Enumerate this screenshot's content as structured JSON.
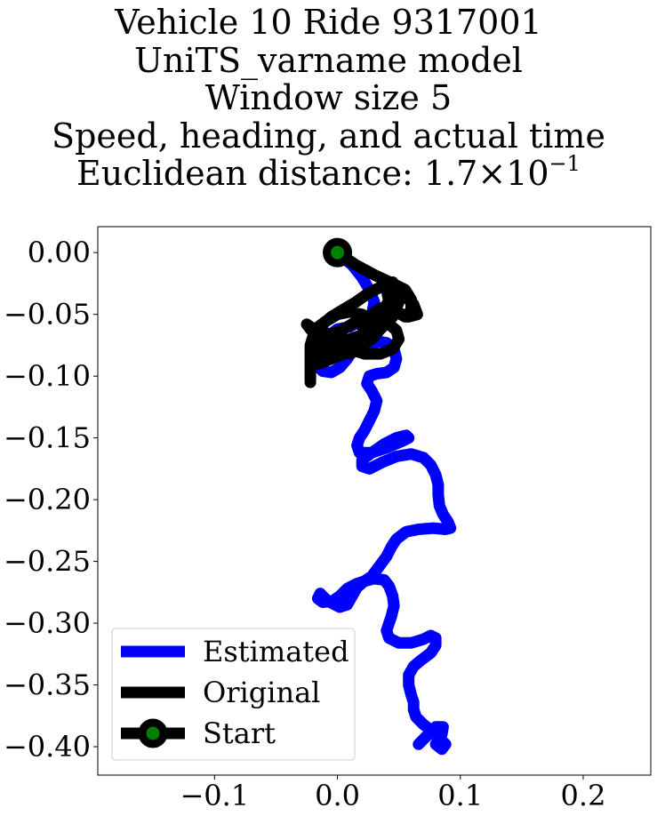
{
  "chart_data": {
    "type": "line",
    "title_lines": [
      "Vehicle 10 Ride 9317001",
      "UniTS_varname model",
      "Window size 5",
      "Speed, heading, and actual time"
    ],
    "distance_label": "Euclidean distance: 1.7",
    "distance_mult": "×",
    "distance_base": "10",
    "distance_exp": "−1",
    "xlim": [
      -0.195,
      0.255
    ],
    "ylim": [
      -0.423,
      0.021
    ],
    "x_ticks": [
      -0.1,
      0.0,
      0.1,
      0.2
    ],
    "x_tick_labels": [
      "−0.1",
      "0.0",
      "0.1",
      "0.2"
    ],
    "y_ticks": [
      0.0,
      -0.05,
      -0.1,
      -0.15,
      -0.2,
      -0.25,
      -0.3,
      -0.35,
      -0.4
    ],
    "y_tick_labels": [
      "0.00",
      "−0.05",
      "−0.10",
      "−0.15",
      "−0.20",
      "−0.25",
      "−0.30",
      "−0.35",
      "−0.40"
    ],
    "grid": false,
    "legend_position": "lower-left",
    "legend": [
      "Estimated",
      "Original",
      "Start"
    ],
    "colors": {
      "estimated": "#0000ff",
      "original": "#000000",
      "start_marker_fill": "#008000",
      "start_marker_edge": "#000000"
    },
    "series": [
      {
        "name": "Estimated",
        "x": [
          0.0,
          0.012,
          0.02,
          0.026,
          0.03,
          0.028,
          0.02,
          0.01,
          0.0,
          -0.008,
          -0.016,
          -0.02,
          -0.018,
          -0.012,
          -0.005,
          0.002,
          0.008,
          0.012,
          0.018,
          0.026,
          0.034,
          0.04,
          0.046,
          0.048,
          0.046,
          0.04,
          0.032,
          0.026,
          0.024,
          0.028,
          0.032,
          0.03,
          0.026,
          0.022,
          0.018,
          0.016,
          0.018,
          0.028,
          0.04,
          0.052,
          0.058,
          0.056,
          0.048,
          0.038,
          0.028,
          0.02,
          0.02,
          0.026,
          0.036,
          0.048,
          0.06,
          0.07,
          0.076,
          0.08,
          0.082,
          0.082,
          0.083,
          0.086,
          0.09,
          0.092,
          0.088,
          0.078,
          0.066,
          0.056,
          0.048,
          0.044,
          0.04,
          0.034,
          0.028,
          0.022,
          0.016,
          0.008,
          0.002,
          -0.004,
          -0.012,
          -0.016,
          -0.014,
          -0.008,
          0.002,
          0.008,
          0.012,
          0.016,
          0.022,
          0.03,
          0.038,
          0.042,
          0.045,
          0.046,
          0.044,
          0.042,
          0.04,
          0.042,
          0.05,
          0.06,
          0.07,
          0.076,
          0.08,
          0.08,
          0.076,
          0.068,
          0.062,
          0.058,
          0.058,
          0.06,
          0.062,
          0.062,
          0.064,
          0.07,
          0.078,
          0.084,
          0.088,
          0.085,
          0.08,
          0.085,
          0.086,
          0.08,
          0.074,
          0.066
        ],
        "y": [
          0.0,
          -0.01,
          -0.02,
          -0.03,
          -0.04,
          -0.05,
          -0.055,
          -0.06,
          -0.062,
          -0.068,
          -0.075,
          -0.082,
          -0.09,
          -0.096,
          -0.097,
          -0.093,
          -0.086,
          -0.08,
          -0.078,
          -0.075,
          -0.072,
          -0.073,
          -0.078,
          -0.086,
          -0.093,
          -0.097,
          -0.098,
          -0.1,
          -0.106,
          -0.112,
          -0.12,
          -0.128,
          -0.136,
          -0.144,
          -0.15,
          -0.156,
          -0.162,
          -0.162,
          -0.158,
          -0.153,
          -0.15,
          -0.148,
          -0.15,
          -0.155,
          -0.162,
          -0.168,
          -0.173,
          -0.175,
          -0.17,
          -0.165,
          -0.163,
          -0.166,
          -0.172,
          -0.18,
          -0.188,
          -0.196,
          -0.205,
          -0.212,
          -0.218,
          -0.223,
          -0.224,
          -0.223,
          -0.224,
          -0.226,
          -0.232,
          -0.238,
          -0.246,
          -0.254,
          -0.262,
          -0.266,
          -0.268,
          -0.272,
          -0.278,
          -0.282,
          -0.283,
          -0.28,
          -0.276,
          -0.282,
          -0.287,
          -0.285,
          -0.278,
          -0.271,
          -0.266,
          -0.264,
          -0.265,
          -0.27,
          -0.278,
          -0.286,
          -0.294,
          -0.3,
          -0.306,
          -0.312,
          -0.316,
          -0.316,
          -0.313,
          -0.31,
          -0.312,
          -0.318,
          -0.324,
          -0.33,
          -0.335,
          -0.342,
          -0.35,
          -0.358,
          -0.364,
          -0.37,
          -0.376,
          -0.382,
          -0.388,
          -0.394,
          -0.398,
          -0.402,
          -0.398,
          -0.39,
          -0.384,
          -0.384,
          -0.39,
          -0.398
        ]
      },
      {
        "name": "Original",
        "x": [
          0.0,
          0.015,
          0.03,
          0.045,
          0.055,
          0.06,
          0.06,
          0.055,
          0.048,
          0.04,
          0.035,
          0.035,
          0.025,
          0.01,
          -0.005,
          -0.015,
          -0.02,
          -0.015,
          -0.005,
          0.01,
          0.025,
          0.035,
          0.045,
          0.05,
          0.05,
          0.045,
          0.04,
          0.042,
          0.048,
          0.058,
          0.065,
          0.062,
          0.055,
          0.045,
          0.035,
          0.025,
          0.015,
          0.005,
          -0.005,
          -0.012,
          -0.015,
          -0.01,
          0.0,
          0.01,
          0.018,
          0.02,
          0.022,
          0.028,
          0.035,
          0.04,
          0.038,
          0.03,
          0.02,
          0.008,
          -0.005,
          -0.015,
          -0.022,
          -0.025,
          -0.022,
          -0.015,
          -0.005,
          0.005,
          0.015,
          0.025,
          0.035,
          0.042,
          0.048,
          0.05,
          0.045,
          0.035,
          0.022,
          0.01,
          0.0,
          -0.01,
          -0.018,
          -0.022,
          -0.02,
          -0.012,
          0.0,
          0.012,
          0.02,
          0.028,
          0.032,
          0.03,
          0.02,
          0.01,
          0.0,
          -0.01,
          -0.018,
          -0.022,
          -0.022
        ],
        "y": [
          0.0,
          -0.01,
          -0.018,
          -0.025,
          -0.03,
          -0.038,
          -0.047,
          -0.052,
          -0.048,
          -0.042,
          -0.05,
          -0.06,
          -0.065,
          -0.07,
          -0.075,
          -0.082,
          -0.088,
          -0.09,
          -0.086,
          -0.08,
          -0.072,
          -0.062,
          -0.052,
          -0.04,
          -0.03,
          -0.024,
          -0.03,
          -0.04,
          -0.048,
          -0.052,
          -0.05,
          -0.042,
          -0.035,
          -0.03,
          -0.028,
          -0.033,
          -0.04,
          -0.046,
          -0.052,
          -0.058,
          -0.066,
          -0.075,
          -0.08,
          -0.082,
          -0.078,
          -0.068,
          -0.058,
          -0.05,
          -0.045,
          -0.048,
          -0.058,
          -0.068,
          -0.075,
          -0.078,
          -0.076,
          -0.07,
          -0.062,
          -0.058,
          -0.06,
          -0.064,
          -0.066,
          -0.062,
          -0.056,
          -0.052,
          -0.054,
          -0.058,
          -0.063,
          -0.07,
          -0.078,
          -0.082,
          -0.082,
          -0.078,
          -0.073,
          -0.07,
          -0.072,
          -0.078,
          -0.084,
          -0.086,
          -0.082,
          -0.078,
          -0.074,
          -0.07,
          -0.064,
          -0.056,
          -0.05,
          -0.048,
          -0.05,
          -0.056,
          -0.062,
          -0.075,
          -0.105
        ]
      }
    ],
    "start_point": {
      "name": "Start",
      "x": 0.0,
      "y": 0.0
    }
  }
}
